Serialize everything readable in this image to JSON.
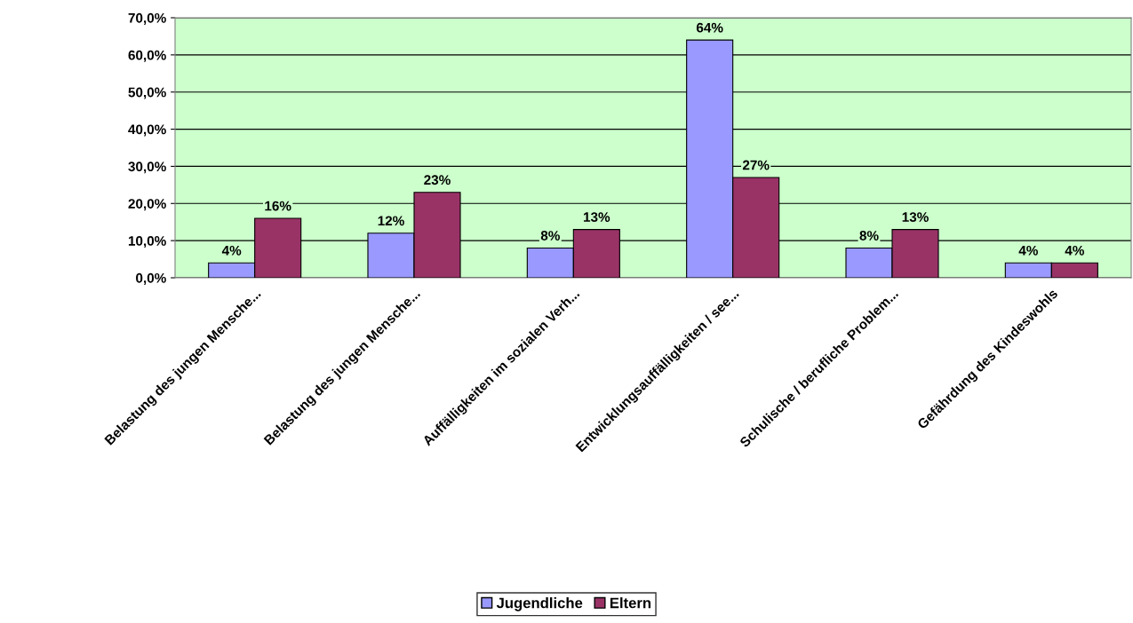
{
  "chart_data": {
    "type": "bar",
    "categories": [
      "Belastung des jungen Mensche...",
      "Belastung des jungen Mensche...",
      "Auffälligkeiten im sozialen Verh...",
      "Entwicklungsauffälligkeiten / see...",
      "Schulische / berufliche Problem...",
      "Gefährdung des Kindeswohls"
    ],
    "series": [
      {
        "name": "Jugendliche",
        "color": "#9999ff",
        "values": [
          4,
          12,
          8,
          64,
          8,
          4
        ],
        "value_labels": [
          "4%",
          "12%",
          "8%",
          "64%",
          "8%",
          "4%"
        ]
      },
      {
        "name": "Eltern",
        "color": "#993366",
        "values": [
          16,
          23,
          13,
          27,
          13,
          4
        ],
        "value_labels": [
          "16%",
          "23%",
          "13%",
          "27%",
          "13%",
          "4%"
        ]
      }
    ],
    "ylim": [
      0,
      70
    ],
    "yticks": [
      {
        "value": 0,
        "label": "0,0%"
      },
      {
        "value": 10,
        "label": "10,0%"
      },
      {
        "value": 20,
        "label": "20,0%"
      },
      {
        "value": 30,
        "label": "30,0%"
      },
      {
        "value": 40,
        "label": "40,0%"
      },
      {
        "value": 50,
        "label": "50,0%"
      },
      {
        "value": 60,
        "label": "60,0%"
      },
      {
        "value": 70,
        "label": "70,0%"
      }
    ],
    "grid": "y",
    "legend": "bottom"
  }
}
